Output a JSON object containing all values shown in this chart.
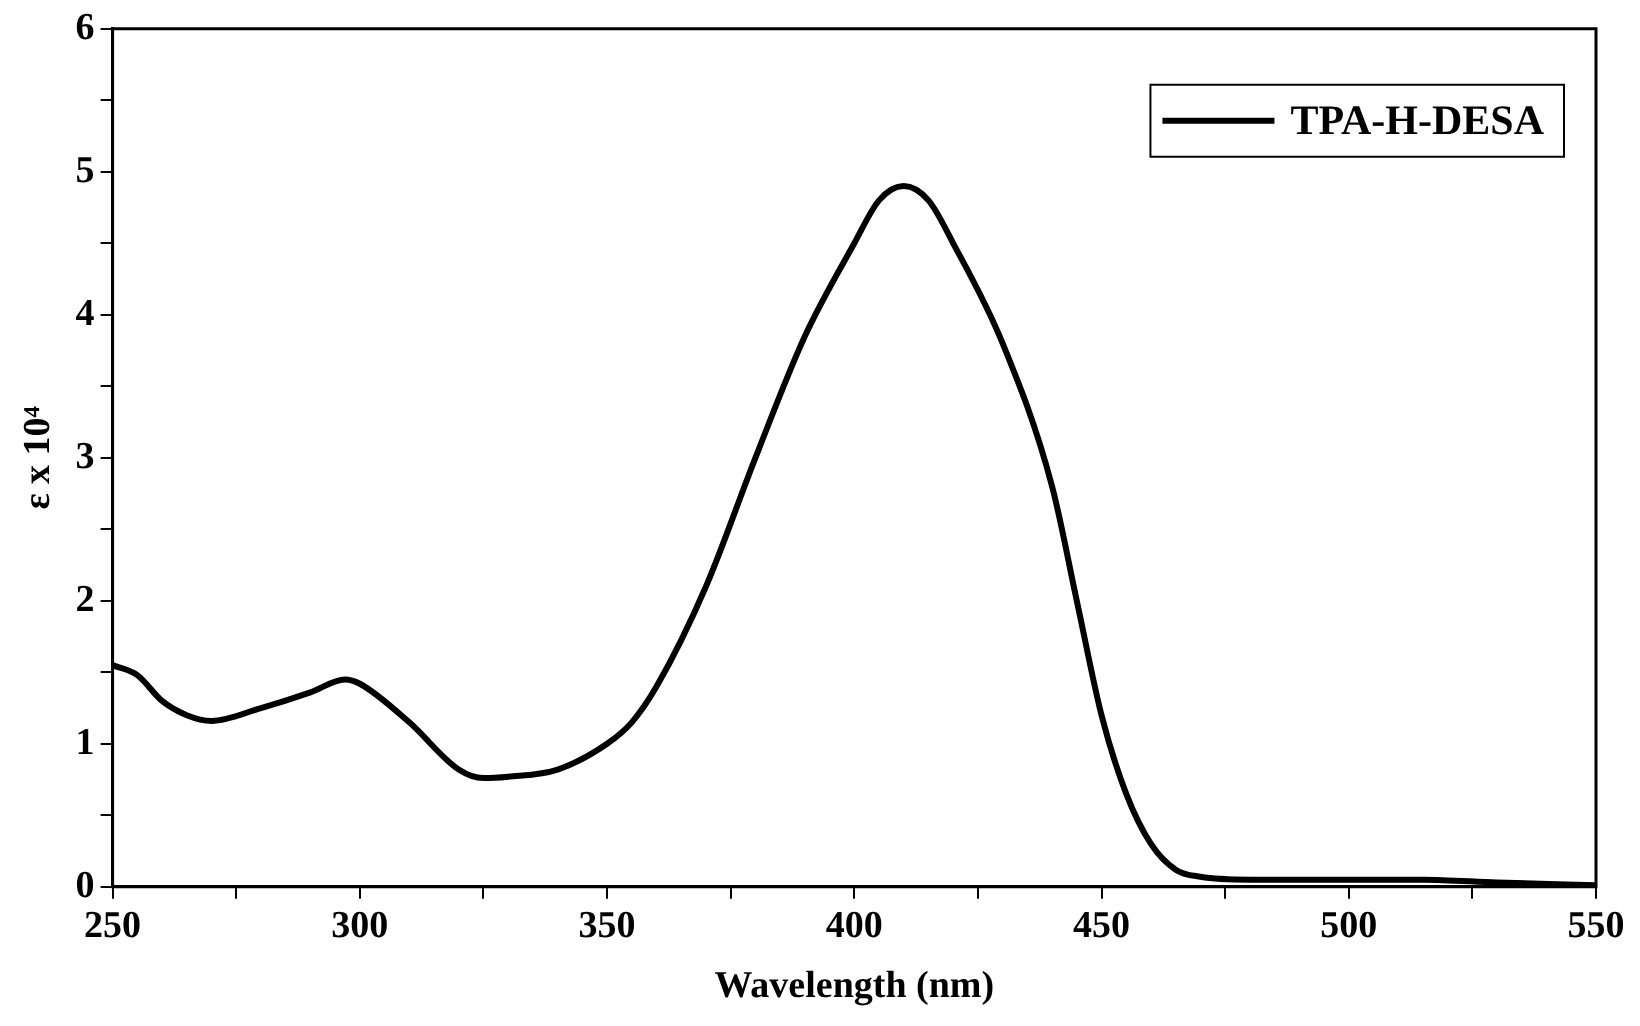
{
  "chart_data": {
    "type": "line",
    "xlabel": "Wavelength (nm)",
    "ylabel": "ε x 10⁴",
    "x": [
      250,
      255,
      260,
      265,
      270,
      280,
      290,
      297,
      300,
      310,
      320,
      325,
      330,
      340,
      350,
      355,
      360,
      370,
      380,
      390,
      400,
      405,
      410,
      415,
      420,
      430,
      440,
      445,
      450,
      455,
      460,
      465,
      470,
      480,
      500,
      515,
      530,
      550
    ],
    "series": [
      {
        "name": "TPA-H-DESA",
        "color": "#000000",
        "values": [
          1.55,
          1.48,
          1.3,
          1.2,
          1.16,
          1.25,
          1.36,
          1.45,
          1.42,
          1.15,
          0.82,
          0.76,
          0.77,
          0.82,
          1.0,
          1.15,
          1.4,
          2.1,
          3.0,
          3.85,
          4.5,
          4.8,
          4.9,
          4.8,
          4.5,
          3.8,
          2.8,
          2.0,
          1.2,
          0.65,
          0.3,
          0.12,
          0.07,
          0.05,
          0.05,
          0.05,
          0.03,
          0.01
        ]
      }
    ],
    "xlim": [
      250,
      550
    ],
    "xticks": [
      250,
      {
        "value": 275,
        "label": null
      },
      300,
      {
        "value": 325,
        "label": null
      },
      350,
      {
        "value": 375,
        "label": null
      },
      400,
      {
        "value": 425,
        "label": null
      },
      450,
      {
        "value": 475,
        "label": null
      },
      500,
      {
        "value": 525,
        "label": null
      },
      550
    ],
    "ylim": [
      0,
      6
    ],
    "yticks": [
      0,
      {
        "value": 0.5,
        "label": null
      },
      1,
      {
        "value": 1.5,
        "label": null
      },
      2,
      {
        "value": 2.5,
        "label": null
      },
      3,
      {
        "value": 3.5,
        "label": null
      },
      4,
      {
        "value": 4.5,
        "label": null
      },
      5,
      {
        "value": 5.5,
        "label": null
      },
      6
    ],
    "grid": false,
    "legend": "top right",
    "marker": "none",
    "line_style": "solid"
  }
}
